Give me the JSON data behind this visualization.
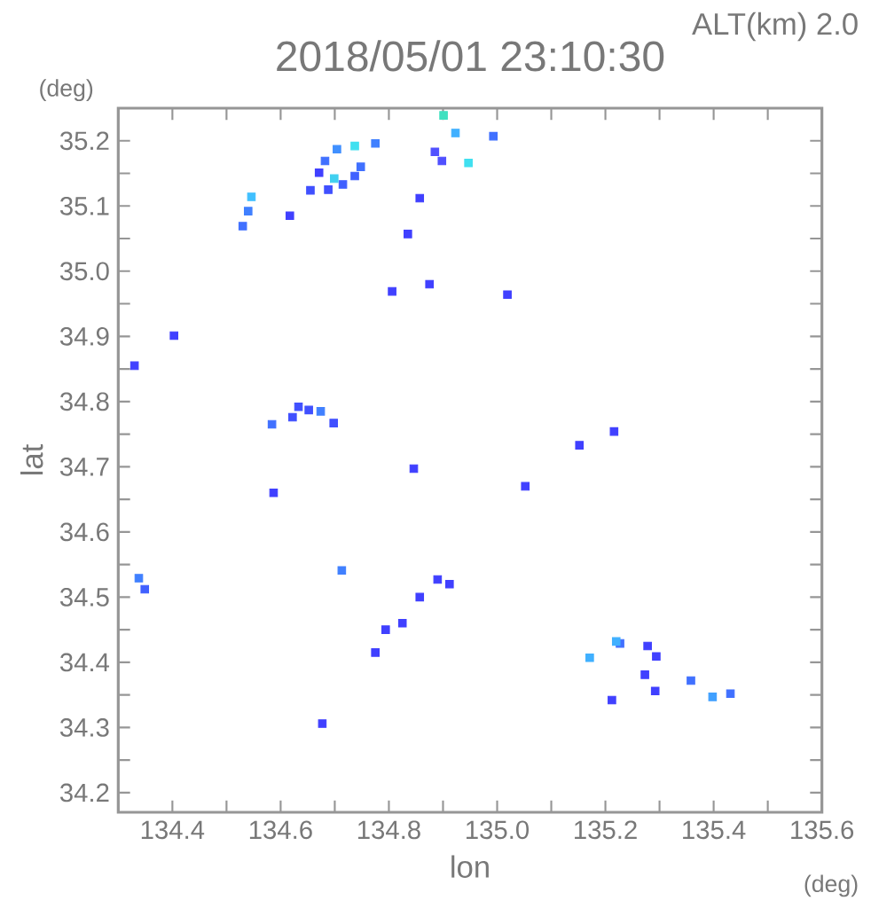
{
  "chart_data": {
    "type": "scatter",
    "title": "2018/05/01 23:10:30",
    "xlabel": "lon",
    "ylabel": "lat",
    "annotations": [
      "ALT(km) 2.0",
      "(deg)",
      "(deg)"
    ],
    "marker": "square",
    "grid": false,
    "xlim": [
      134.3,
      135.6
    ],
    "ylim": [
      34.17,
      35.25
    ],
    "xticks": [
      {
        "value": 134.3,
        "label": null
      },
      134.4,
      {
        "value": 134.5,
        "label": null
      },
      134.6,
      {
        "value": 134.7,
        "label": null
      },
      134.8,
      {
        "value": 134.9,
        "label": null
      },
      {
        "value": 135.0,
        "label": "135.0"
      },
      {
        "value": 135.1,
        "label": null
      },
      135.2,
      {
        "value": 135.3,
        "label": null
      },
      135.4,
      {
        "value": 135.5,
        "label": null
      },
      135.6
    ],
    "yticks": [
      34.2,
      {
        "value": 34.25,
        "label": null
      },
      34.3,
      {
        "value": 34.35,
        "label": null
      },
      34.4,
      {
        "value": 34.45,
        "label": null
      },
      34.5,
      {
        "value": 34.55,
        "label": null
      },
      34.6,
      {
        "value": 34.65,
        "label": null
      },
      34.7,
      {
        "value": 34.75,
        "label": null
      },
      34.8,
      {
        "value": 34.85,
        "label": null
      },
      34.9,
      {
        "value": 34.95,
        "label": null
      },
      {
        "value": 35.0,
        "label": "35.0"
      },
      {
        "value": 35.05,
        "label": null
      },
      35.1,
      {
        "value": 35.15,
        "label": null
      },
      35.2
    ],
    "x": [
      134.901,
      134.923,
      134.993,
      134.885,
      134.898,
      134.947,
      134.775,
      134.737,
      134.704,
      134.682,
      134.671,
      134.655,
      134.688,
      134.715,
      134.737,
      134.748,
      134.699,
      134.546,
      134.54,
      134.53,
      134.617,
      134.857,
      134.835,
      134.806,
      134.875,
      135.019,
      134.403,
      134.33,
      134.584,
      134.622,
      134.633,
      134.652,
      134.674,
      134.698,
      134.587,
      134.846,
      135.052,
      135.152,
      135.216,
      134.338,
      134.349,
      134.713,
      134.857,
      134.89,
      134.912,
      134.825,
      134.794,
      134.775,
      134.677,
      135.227,
      135.22,
      135.278,
      135.294,
      135.273,
      135.292,
      135.212,
      135.358,
      135.398,
      135.431,
      135.171
    ],
    "values": [
      35.239,
      35.212,
      35.207,
      35.183,
      35.169,
      35.166,
      35.196,
      35.192,
      35.187,
      35.169,
      35.151,
      35.124,
      35.125,
      35.133,
      35.146,
      35.16,
      35.142,
      35.114,
      35.092,
      35.069,
      35.085,
      35.112,
      35.057,
      34.969,
      34.98,
      34.964,
      34.901,
      34.855,
      34.765,
      34.776,
      34.792,
      34.787,
      34.785,
      34.767,
      34.66,
      34.697,
      34.67,
      34.733,
      34.754,
      34.529,
      34.512,
      34.541,
      34.5,
      34.527,
      34.52,
      34.46,
      34.45,
      34.415,
      34.306,
      34.429,
      34.432,
      34.425,
      34.409,
      34.381,
      34.356,
      34.342,
      34.372,
      34.347,
      34.352,
      34.407
    ],
    "colors": [
      "#40e0c0",
      "#40b0ff",
      "#4070ff",
      "#5050ff",
      "#5050ff",
      "#40e0f0",
      "#4080ff",
      "#40e0f0",
      "#4090ff",
      "#4070ff",
      "#4040ff",
      "#4050ff",
      "#4050ff",
      "#4060ff",
      "#4060ff",
      "#4070ff",
      "#40d0f0",
      "#40c0ff",
      "#4080ff",
      "#4070ff",
      "#4040ff",
      "#4040ff",
      "#4040ff",
      "#4040ff",
      "#4040ff",
      "#4040ff",
      "#4040ff",
      "#4040ff",
      "#4070ff",
      "#4050ff",
      "#4050ff",
      "#4050ff",
      "#4080ff",
      "#4050ff",
      "#4040ff",
      "#4040ff",
      "#4040ff",
      "#4040ff",
      "#4040ff",
      "#4080ff",
      "#4060ff",
      "#4080ff",
      "#4040ff",
      "#4040ff",
      "#4040ff",
      "#4040ff",
      "#4040ff",
      "#4040ff",
      "#4040ff",
      "#4070ff",
      "#40b0ff",
      "#4040ff",
      "#4040ff",
      "#4040ff",
      "#4040ff",
      "#4040ff",
      "#4070ff",
      "#40a0ff",
      "#4070ff",
      "#40b0ff"
    ]
  }
}
